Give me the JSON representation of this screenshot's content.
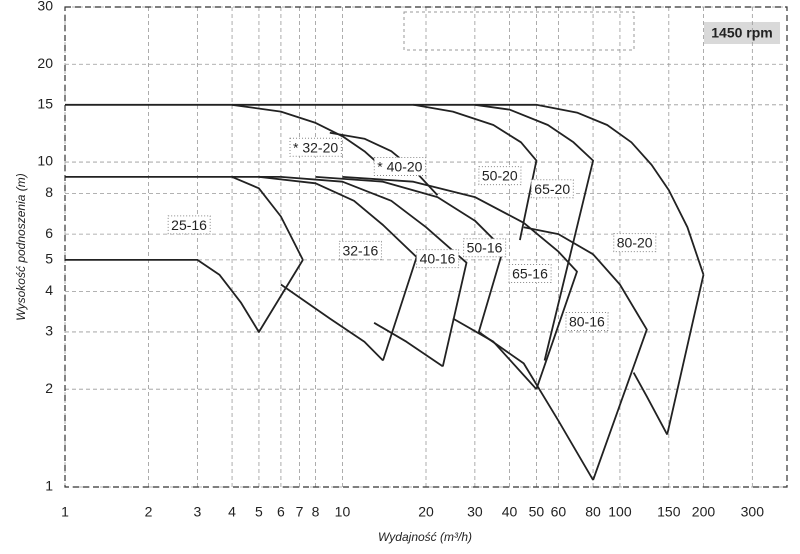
{
  "chart_data": {
    "type": "line",
    "x_label": "Wydajność (m³/h)",
    "y_label": "Wysokość podnoszenia (m)",
    "badge": "1450 rpm",
    "log_x": true,
    "log_y": true,
    "grid": true,
    "xlim": [
      1,
      400
    ],
    "ylim": [
      1,
      30
    ],
    "xticks": [
      1,
      2,
      3,
      4,
      5,
      6,
      7,
      8,
      10,
      20,
      30,
      40,
      50,
      60,
      80,
      100,
      150,
      200,
      300
    ],
    "yticks": [
      1,
      2,
      3,
      4,
      5,
      6,
      8,
      10,
      15,
      20,
      30
    ],
    "series": [
      {
        "color": "#222",
        "x": [
          1,
          50,
          70,
          90,
          110,
          130,
          150,
          175,
          200
        ],
        "values": [
          15,
          15,
          14.2,
          13,
          11.5,
          9.8,
          8.2,
          6.3,
          4.5
        ]
      },
      {
        "color": "#222",
        "x": [
          200,
          148
        ],
        "values": [
          4.5,
          1.45
        ]
      },
      {
        "color": "#222",
        "x": [
          148,
          125,
          112
        ],
        "values": [
          1.45,
          1.9,
          2.25
        ]
      },
      {
        "color": "#222",
        "x": [
          4,
          6,
          8,
          10,
          12,
          14.2
        ],
        "values": [
          15,
          14.3,
          13.2,
          12,
          10.8,
          9.5
        ]
      },
      {
        "color": "#222",
        "x": [
          9,
          12,
          15,
          18,
          22
        ],
        "values": [
          12.3,
          11.8,
          10.8,
          9.5,
          7.9
        ]
      },
      {
        "color": "#222",
        "x": [
          18,
          25,
          35,
          44,
          50,
          43.6
        ],
        "values": [
          15,
          14.3,
          13,
          11.5,
          10.1,
          5.75
        ]
      },
      {
        "color": "#222",
        "x": [
          30,
          40,
          55,
          68,
          80,
          53.5
        ],
        "values": [
          15,
          14.5,
          13,
          11.5,
          10.1,
          2.45
        ]
      },
      {
        "color": "#222",
        "x": [
          1,
          6
        ],
        "values": [
          9,
          9
        ]
      },
      {
        "color": "#222",
        "x": [
          4,
          5,
          6,
          7.2
        ],
        "values": [
          9,
          8.3,
          6.8,
          5
        ]
      },
      {
        "color": "#222",
        "x": [
          1,
          3,
          3.6,
          4.3,
          5,
          7.2
        ],
        "values": [
          5,
          5,
          4.5,
          3.7,
          3,
          5
        ]
      },
      {
        "color": "#222",
        "x": [
          5,
          8,
          11,
          14,
          18.5,
          14
        ],
        "values": [
          9,
          8.6,
          7.6,
          6.4,
          5.1,
          2.45
        ]
      },
      {
        "color": "#222",
        "x": [
          6,
          10,
          15,
          20,
          28,
          23
        ],
        "values": [
          9,
          8.7,
          7.6,
          6.3,
          4.9,
          2.35
        ]
      },
      {
        "color": "#222",
        "x": [
          8,
          14,
          22,
          30,
          38,
          31
        ],
        "values": [
          9,
          8.7,
          7.8,
          6.6,
          5.4,
          3.0
        ]
      },
      {
        "color": "#222",
        "x": [
          10,
          18,
          30,
          45,
          60,
          70,
          50
        ],
        "values": [
          9,
          8.7,
          7.8,
          6.5,
          5.3,
          4.6,
          2.0
        ]
      },
      {
        "color": "#222",
        "x": [
          45,
          60,
          80,
          100,
          125,
          80
        ],
        "values": [
          6.3,
          6.0,
          5.2,
          4.2,
          3.05,
          1.05
        ]
      },
      {
        "color": "#222",
        "x": [
          6,
          9,
          12,
          14
        ],
        "values": [
          4.2,
          3.3,
          2.8,
          2.45
        ]
      },
      {
        "color": "#222",
        "x": [
          13,
          17,
          23
        ],
        "values": [
          3.2,
          2.8,
          2.35
        ]
      },
      {
        "color": "#222",
        "x": [
          25,
          35,
          50
        ],
        "values": [
          3.3,
          2.8,
          2.0
        ]
      },
      {
        "color": "#222",
        "x": [
          31,
          45,
          60,
          80
        ],
        "values": [
          3.0,
          2.4,
          1.6,
          1.05
        ]
      }
    ],
    "annotations": [
      {
        "text": "* 32-20",
        "x": 8,
        "y": 11.0
      },
      {
        "text": "* 40-20",
        "x": 16.1,
        "y": 9.6
      },
      {
        "text": "50-20",
        "x": 36.9,
        "y": 9.0
      },
      {
        "text": "65-20",
        "x": 57,
        "y": 8.2
      },
      {
        "text": "80-20",
        "x": 113,
        "y": 5.6
      },
      {
        "text": "25-16",
        "x": 2.8,
        "y": 6.35
      },
      {
        "text": "32-16",
        "x": 11.6,
        "y": 5.3
      },
      {
        "text": "40-16",
        "x": 22,
        "y": 5.0
      },
      {
        "text": "50-16",
        "x": 32.5,
        "y": 5.4
      },
      {
        "text": "65-16",
        "x": 47.4,
        "y": 4.5
      },
      {
        "text": "80-16",
        "x": 76,
        "y": 3.2
      }
    ]
  }
}
